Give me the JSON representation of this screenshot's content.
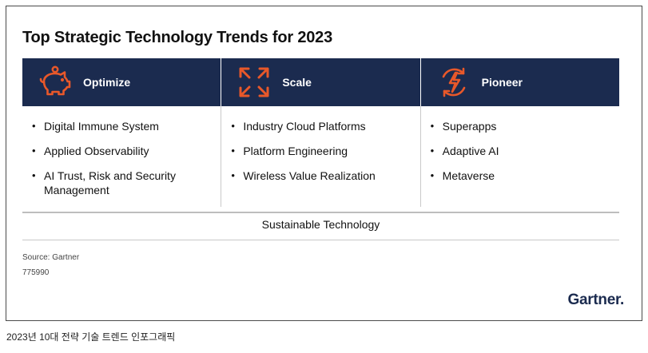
{
  "title": "Top Strategic Technology Trends for 2023",
  "colors": {
    "header_bg": "#1b2b4f",
    "accent": "#e8582a"
  },
  "columns": [
    {
      "heading": "Optimize",
      "icon": "piggy-bank-icon",
      "items": [
        "Digital Immune System",
        "Applied Observability",
        "AI Trust, Risk and Security Management"
      ]
    },
    {
      "heading": "Scale",
      "icon": "expand-arrows-icon",
      "items": [
        "Industry Cloud Platforms",
        "Platform Engineering",
        "Wireless Value Realization"
      ]
    },
    {
      "heading": "Pioneer",
      "icon": "lightning-cycle-icon",
      "items": [
        "Superapps",
        "Adaptive AI",
        "Metaverse"
      ]
    }
  ],
  "footer_theme": "Sustainable Technology",
  "source": "Source: Gartner",
  "doc_id": "775990",
  "logo": "Gartner.",
  "caption": "2023년 10대 전략 기술 트렌드 인포그래픽"
}
